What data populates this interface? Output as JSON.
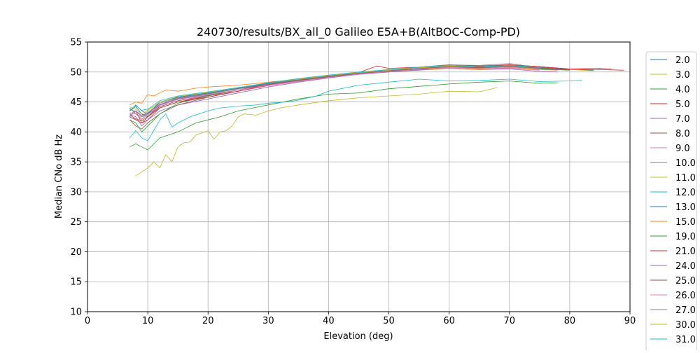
{
  "chart_data": {
    "type": "line",
    "title": "240730/results/BX_all_0 Galileo E5A+B(AltBOC-Comp-PD)",
    "xlabel": "Elevation (deg)",
    "ylabel": "Median CNo dB Hz",
    "xlim": [
      0,
      90
    ],
    "ylim": [
      10,
      55
    ],
    "xticks": [
      "0",
      "10",
      "20",
      "30",
      "40",
      "50",
      "60",
      "70",
      "80",
      "90"
    ],
    "yticks": [
      "10",
      "15",
      "20",
      "25",
      "30",
      "35",
      "40",
      "45",
      "50",
      "55"
    ],
    "grid": true,
    "legend_placement": "right, outside plot",
    "series": [
      {
        "name": "2.0",
        "color": "#1f77b4",
        "x": [
          7,
          8,
          9,
          10,
          12,
          15,
          20,
          25,
          30,
          35,
          40,
          45,
          50,
          55,
          60,
          65,
          70,
          75,
          80,
          84
        ],
        "y": [
          43.5,
          44.2,
          43.0,
          42.5,
          44.5,
          45.5,
          46.2,
          47.0,
          48.0,
          48.6,
          49.2,
          49.7,
          50.2,
          50.6,
          51.0,
          50.8,
          51.1,
          50.7,
          50.4,
          50.3
        ]
      },
      {
        "name": "3.0",
        "color": "#bcbd22",
        "x": [
          7,
          8,
          9,
          10,
          12,
          15,
          20,
          25,
          30,
          35,
          40,
          45,
          50,
          55,
          60,
          65,
          70,
          75,
          80,
          84
        ],
        "y": [
          44.0,
          43.0,
          42.0,
          43.5,
          45.0,
          45.8,
          46.5,
          47.2,
          48.0,
          48.7,
          49.3,
          49.9,
          50.3,
          50.7,
          51.0,
          50.9,
          51.0,
          50.6,
          50.4,
          50.2
        ]
      },
      {
        "name": "4.0",
        "color": "#2ca02c",
        "x": [
          7,
          8,
          9,
          10,
          12,
          15,
          18,
          20,
          22,
          25,
          30,
          35,
          40,
          45,
          50,
          55,
          60,
          65,
          70,
          75,
          78
        ],
        "y": [
          37.5,
          38.0,
          37.5,
          37.0,
          39.0,
          40.0,
          41.5,
          42.0,
          42.5,
          43.5,
          44.5,
          45.5,
          46.3,
          46.5,
          47.2,
          47.6,
          48.0,
          48.3,
          48.5,
          48.1,
          48.2
        ]
      },
      {
        "name": "5.0",
        "color": "#d62728",
        "x": [
          7,
          8,
          9,
          10,
          12,
          15,
          20,
          25,
          30,
          35,
          40,
          45,
          48,
          50,
          55,
          60,
          65,
          70,
          75,
          80,
          85,
          87
        ],
        "y": [
          42.5,
          43.5,
          41.5,
          42.0,
          44.0,
          45.0,
          46.0,
          47.0,
          48.0,
          48.6,
          49.3,
          49.9,
          51.0,
          50.6,
          50.8,
          51.2,
          51.0,
          51.2,
          50.9,
          50.5,
          50.6,
          50.5
        ]
      },
      {
        "name": "7.0",
        "color": "#9467bd",
        "x": [
          7,
          8,
          9,
          10,
          12,
          15,
          20,
          25,
          30,
          35,
          40,
          45,
          50,
          55,
          60,
          65,
          70,
          75,
          78
        ],
        "y": [
          43.0,
          42.5,
          41.0,
          42.0,
          43.5,
          44.5,
          45.5,
          46.5,
          47.5,
          48.3,
          49.0,
          49.6,
          50.0,
          50.3,
          50.6,
          50.4,
          50.5,
          50.1,
          50.0
        ]
      },
      {
        "name": "8.0",
        "color": "#8c564b",
        "x": [
          7,
          8,
          9,
          10,
          12,
          15,
          20,
          25,
          30,
          35,
          40,
          45,
          50,
          55,
          60,
          65,
          70,
          75,
          80
        ],
        "y": [
          42.0,
          41.0,
          40.5,
          41.5,
          43.0,
          44.5,
          45.8,
          46.8,
          47.8,
          48.5,
          49.2,
          49.8,
          50.3,
          50.6,
          50.9,
          50.7,
          51.0,
          50.6,
          50.4
        ]
      },
      {
        "name": "9.0",
        "color": "#e377c2",
        "x": [
          7,
          8,
          9,
          10,
          12,
          15,
          20,
          25,
          30,
          35,
          40,
          45,
          50,
          55,
          60,
          65,
          70,
          75
        ],
        "y": [
          43.0,
          42.0,
          42.0,
          43.0,
          44.2,
          45.2,
          46.0,
          46.8,
          47.7,
          48.4,
          49.1,
          49.6,
          50.1,
          50.4,
          50.7,
          50.5,
          50.6,
          50.3
        ]
      },
      {
        "name": "10.0",
        "color": "#7f7f7f",
        "x": [
          7,
          8,
          9,
          10,
          12,
          15,
          20,
          25,
          30,
          35,
          40,
          45,
          50,
          55,
          60,
          65,
          70,
          72
        ],
        "y": [
          44.0,
          43.0,
          42.5,
          43.0,
          44.5,
          45.5,
          46.3,
          47.2,
          48.0,
          48.7,
          49.3,
          49.8,
          50.3,
          50.8,
          51.2,
          51.1,
          51.4,
          51.2
        ]
      },
      {
        "name": "11.0",
        "color": "#bcbd22",
        "x": [
          8,
          9,
          10,
          11,
          12,
          13,
          14,
          15,
          16,
          17,
          18,
          20,
          21,
          22,
          23,
          24,
          25,
          26,
          28,
          30,
          32,
          35,
          40,
          45,
          50,
          55,
          60,
          65,
          68
        ],
        "y": [
          32.7,
          33.3,
          34.0,
          35.0,
          34.0,
          36.2,
          35.0,
          37.5,
          38.2,
          38.3,
          39.5,
          40.2,
          38.8,
          40.0,
          40.2,
          41.0,
          42.5,
          43.0,
          42.8,
          43.5,
          44.0,
          44.5,
          45.2,
          45.7,
          46.0,
          46.3,
          46.8,
          46.7,
          47.4
        ]
      },
      {
        "name": "12.0",
        "color": "#17becf",
        "x": [
          7,
          8,
          9,
          10,
          12,
          13,
          14,
          15,
          17,
          20,
          22,
          25,
          28,
          30,
          33,
          35,
          38,
          40,
          45,
          50,
          55,
          60,
          65,
          70,
          75,
          80,
          82
        ],
        "y": [
          39.0,
          40.2,
          39.0,
          38.5,
          42.0,
          43.0,
          40.8,
          41.5,
          42.5,
          43.5,
          44.0,
          44.3,
          44.5,
          44.8,
          45.0,
          45.3,
          46.0,
          46.8,
          47.8,
          48.3,
          48.8,
          48.5,
          48.6,
          48.8,
          48.4,
          48.5,
          48.6
        ]
      },
      {
        "name": "13.0",
        "color": "#1f77b4",
        "x": [
          7,
          8,
          9,
          10,
          12,
          15,
          20,
          25,
          30,
          35,
          40,
          45,
          50,
          55,
          60,
          65,
          70,
          75,
          80
        ],
        "y": [
          43.5,
          44.5,
          43.5,
          43.0,
          45.0,
          45.8,
          46.5,
          47.3,
          48.1,
          48.8,
          49.4,
          49.9,
          50.4,
          50.7,
          51.0,
          50.8,
          51.0,
          50.7,
          50.4
        ]
      },
      {
        "name": "15.0",
        "color": "#ff7f0e",
        "x": [
          7,
          8,
          9,
          10,
          11,
          12,
          13,
          15,
          18,
          20,
          25,
          30,
          35,
          40,
          45,
          50,
          55,
          60,
          65,
          70,
          75,
          78
        ],
        "y": [
          44.5,
          45.0,
          44.8,
          46.2,
          46.0,
          46.5,
          47.0,
          46.8,
          47.3,
          47.5,
          47.8,
          48.3,
          48.8,
          49.3,
          49.7,
          50.1,
          50.4,
          50.6,
          50.5,
          50.7,
          50.4,
          50.3
        ]
      },
      {
        "name": "19.0",
        "color": "#2ca02c",
        "x": [
          7,
          8,
          9,
          10,
          12,
          15,
          20,
          25,
          30,
          35,
          40,
          45,
          50,
          55,
          60,
          65,
          70,
          75,
          80
        ],
        "y": [
          42.0,
          41.5,
          40.0,
          41.0,
          43.0,
          44.8,
          46.0,
          47.0,
          47.8,
          48.5,
          49.2,
          49.7,
          50.1,
          50.4,
          50.8,
          50.6,
          50.9,
          50.5,
          50.3
        ]
      },
      {
        "name": "21.0",
        "color": "#d62728",
        "x": [
          7,
          8,
          9,
          10,
          12,
          15,
          20,
          25,
          30,
          35,
          40,
          45,
          50,
          55,
          60,
          65,
          70,
          75,
          80,
          85,
          89
        ],
        "y": [
          42.5,
          42.0,
          41.5,
          42.5,
          44.0,
          45.0,
          45.8,
          46.8,
          47.8,
          48.6,
          49.3,
          49.8,
          50.3,
          50.7,
          51.0,
          50.8,
          51.2,
          50.9,
          50.5,
          50.4,
          50.3
        ]
      },
      {
        "name": "24.0",
        "color": "#9467bd",
        "x": [
          7,
          8,
          9,
          10,
          12,
          15,
          20,
          25,
          30,
          35,
          40,
          45,
          50,
          55,
          60,
          65,
          70,
          75,
          80
        ],
        "y": [
          43.0,
          43.5,
          42.8,
          43.2,
          44.6,
          45.6,
          46.4,
          47.2,
          48.0,
          48.6,
          49.2,
          49.7,
          50.2,
          50.5,
          50.9,
          50.7,
          51.0,
          50.7,
          50.4
        ]
      },
      {
        "name": "25.0",
        "color": "#8c564b",
        "x": [
          7,
          8,
          9,
          10,
          12,
          15,
          20,
          25,
          30,
          35,
          40,
          45,
          50,
          55,
          60,
          65,
          70,
          75,
          80
        ],
        "y": [
          42.8,
          42.2,
          41.8,
          42.6,
          44.2,
          45.2,
          46.1,
          47.0,
          47.9,
          48.6,
          49.2,
          49.8,
          50.2,
          50.6,
          50.9,
          50.7,
          51.1,
          50.8,
          50.4
        ]
      },
      {
        "name": "26.0",
        "color": "#e377c2",
        "x": [
          7,
          8,
          9,
          10,
          12,
          15,
          20,
          25,
          30,
          35,
          40,
          45,
          50,
          55,
          60,
          65,
          70,
          75
        ],
        "y": [
          43.2,
          43.0,
          42.2,
          42.8,
          44.4,
          45.4,
          46.2,
          47.0,
          47.8,
          48.5,
          49.1,
          49.6,
          50.1,
          50.4,
          50.8,
          50.6,
          50.8,
          50.5
        ]
      },
      {
        "name": "27.0",
        "color": "#7f7f7f",
        "x": [
          7,
          8,
          9,
          10,
          12,
          15,
          20,
          25,
          30,
          35,
          40,
          45,
          50,
          55,
          60,
          65,
          70,
          75
        ],
        "y": [
          43.8,
          43.4,
          42.6,
          43.2,
          44.8,
          45.7,
          46.4,
          47.2,
          48.0,
          48.7,
          49.3,
          49.8,
          50.3,
          50.6,
          51.0,
          50.8,
          51.0,
          50.7
        ]
      },
      {
        "name": "30.0",
        "color": "#bcbd22",
        "x": [
          7,
          8,
          9,
          10,
          12,
          15,
          20,
          25,
          30,
          35,
          40,
          45,
          50,
          55,
          60,
          65,
          70,
          75
        ],
        "y": [
          44.2,
          43.8,
          43.0,
          43.6,
          45.0,
          45.9,
          46.6,
          47.4,
          48.2,
          48.8,
          49.4,
          49.9,
          50.3,
          50.7,
          51.0,
          50.9,
          51.1,
          50.8
        ]
      },
      {
        "name": "31.0",
        "color": "#17becf",
        "x": [
          7,
          8,
          9,
          10,
          12,
          15,
          20,
          25,
          30,
          35,
          40,
          45,
          50,
          55,
          60,
          65,
          70,
          75
        ],
        "y": [
          43.6,
          44.4,
          43.6,
          43.8,
          45.2,
          46.0,
          46.7,
          47.4,
          48.2,
          48.9,
          49.5,
          50.0,
          50.4,
          50.8,
          51.1,
          50.9,
          51.1,
          50.8
        ]
      }
    ]
  }
}
